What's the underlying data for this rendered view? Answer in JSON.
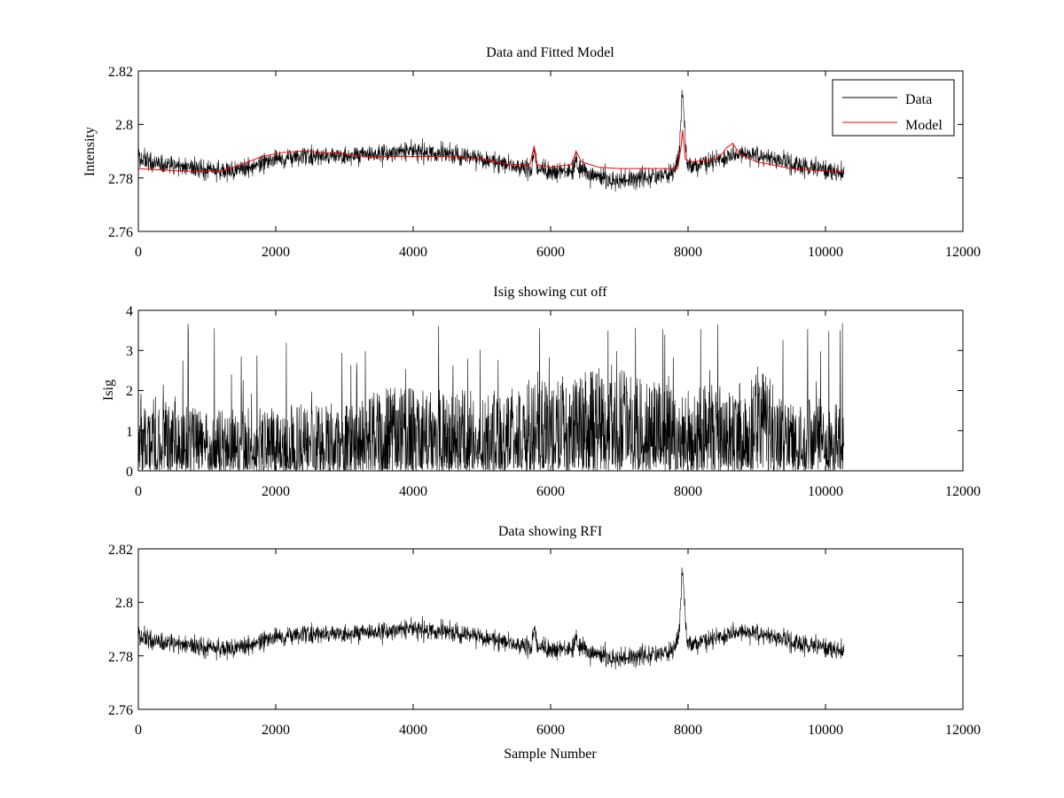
{
  "chart_data": [
    {
      "type": "line",
      "title": "Data and Fitted Model",
      "xlabel": "",
      "ylabel": "Intensity",
      "xlim": [
        0,
        12000
      ],
      "ylim": [
        2.76,
        2.82
      ],
      "xticks": [
        "0",
        "2000",
        "4000",
        "6000",
        "8000",
        "10000",
        "12000"
      ],
      "yticks": [
        "2.76",
        "2.78",
        "2.8",
        "2.82"
      ],
      "legend": {
        "position": "top-right",
        "entries": [
          "Data",
          "Model"
        ]
      },
      "series": [
        {
          "name": "Data",
          "color": "#000000",
          "kind": "noisy",
          "noise_amplitude": 0.0045,
          "x_end": 10270,
          "baseline_x": [
            0,
            300,
            1000,
            1500,
            2000,
            2500,
            3000,
            3500,
            4000,
            4500,
            5000,
            5500,
            5800,
            6000,
            6300,
            6500,
            6900,
            7400,
            7800,
            7880,
            7920,
            8000,
            8300,
            8700,
            9000,
            9500,
            10000,
            10270
          ],
          "baseline_y": [
            2.787,
            2.785,
            2.783,
            2.783,
            2.787,
            2.788,
            2.788,
            2.789,
            2.79,
            2.789,
            2.787,
            2.784,
            2.783,
            2.782,
            2.783,
            2.782,
            2.779,
            2.78,
            2.782,
            2.789,
            2.796,
            2.784,
            2.786,
            2.789,
            2.789,
            2.785,
            2.783,
            2.782
          ],
          "peaks": [
            {
              "x": 7920,
              "height": 0.015,
              "width": 35
            },
            {
              "x": 5770,
              "height": 0.006,
              "width": 30
            },
            {
              "x": 6370,
              "height": 0.005,
              "width": 30
            }
          ]
        },
        {
          "name": "Model",
          "color": "#ff0000",
          "kind": "smooth",
          "x": [
            0,
            300,
            700,
            1200,
            1500,
            1800,
            2100,
            2400,
            2700,
            3000,
            3300,
            3600,
            4000,
            4500,
            5000,
            5400,
            5700,
            5760,
            5800,
            6000,
            6300,
            6370,
            6450,
            6700,
            7000,
            7500,
            7850,
            7900,
            7920,
            7960,
            8050,
            8400,
            8500,
            8550,
            8650,
            8750,
            9000,
            9500,
            10000,
            10270
          ],
          "y": [
            2.7835,
            2.783,
            2.7825,
            2.7825,
            2.785,
            2.788,
            2.7895,
            2.79,
            2.7895,
            2.789,
            2.788,
            2.788,
            2.788,
            2.788,
            2.787,
            2.785,
            2.785,
            2.792,
            2.785,
            2.784,
            2.785,
            2.79,
            2.786,
            2.784,
            2.7835,
            2.7835,
            2.7835,
            2.792,
            2.798,
            2.787,
            2.786,
            2.787,
            2.789,
            2.791,
            2.793,
            2.789,
            2.786,
            2.7835,
            2.7825,
            2.7825
          ]
        }
      ]
    },
    {
      "type": "line",
      "title": "Isig showing cut off",
      "xlabel": "",
      "ylabel": "Isig",
      "xlim": [
        0,
        12000
      ],
      "ylim": [
        0,
        4
      ],
      "xticks": [
        "0",
        "2000",
        "4000",
        "6000",
        "8000",
        "10000",
        "12000"
      ],
      "yticks": [
        "0",
        "1",
        "2",
        "3",
        "4"
      ],
      "series": [
        {
          "name": "Isig",
          "color": "#000000",
          "kind": "spiky",
          "x_end": 10270,
          "envelope_x": [
            0,
            500,
            1000,
            2000,
            3000,
            3700,
            4500,
            5500,
            5800,
            6500,
            6850,
            7500,
            8000,
            8300,
            8600,
            9000,
            9500,
            10270
          ],
          "envelope_y": [
            1.6,
            1.4,
            1.2,
            1.3,
            1.4,
            1.7,
            1.6,
            1.7,
            2.0,
            1.9,
            2.3,
            1.8,
            1.6,
            1.8,
            1.6,
            2.1,
            1.5,
            1.4
          ],
          "max_value": 3.7
        }
      ]
    },
    {
      "type": "line",
      "title": "Data showing RFI",
      "xlabel": "Sample Number",
      "ylabel": "",
      "xlim": [
        0,
        12000
      ],
      "ylim": [
        2.76,
        2.82
      ],
      "xticks": [
        "0",
        "2000",
        "4000",
        "6000",
        "8000",
        "10000",
        "12000"
      ],
      "yticks": [
        "2.76",
        "2.78",
        "2.8",
        "2.82"
      ],
      "series": [
        {
          "name": "Data",
          "color": "#000000",
          "kind": "noisy",
          "noise_amplitude": 0.0045,
          "x_end": 10270,
          "baseline_x": [
            0,
            300,
            1000,
            1500,
            2000,
            2500,
            3000,
            3500,
            4000,
            4500,
            5000,
            5500,
            5800,
            6000,
            6300,
            6500,
            6900,
            7400,
            7800,
            7880,
            7920,
            8000,
            8300,
            8700,
            9000,
            9500,
            10000,
            10270
          ],
          "baseline_y": [
            2.787,
            2.785,
            2.783,
            2.783,
            2.787,
            2.788,
            2.788,
            2.789,
            2.79,
            2.789,
            2.787,
            2.784,
            2.783,
            2.782,
            2.783,
            2.782,
            2.779,
            2.78,
            2.782,
            2.789,
            2.796,
            2.784,
            2.786,
            2.789,
            2.789,
            2.785,
            2.783,
            2.782
          ],
          "peaks": [
            {
              "x": 7920,
              "height": 0.015,
              "width": 35
            },
            {
              "x": 5770,
              "height": 0.006,
              "width": 30
            },
            {
              "x": 6370,
              "height": 0.005,
              "width": 30
            }
          ]
        }
      ]
    }
  ]
}
